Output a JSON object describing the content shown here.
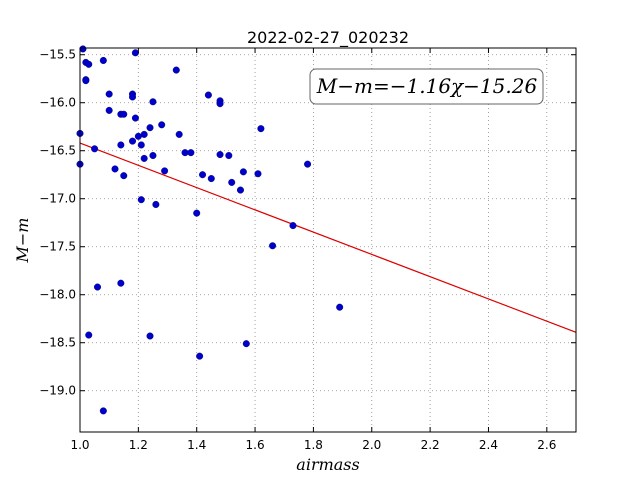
{
  "chart_data": {
    "type": "scatter",
    "title": "2022-02-27_020232",
    "xlabel": "airmass",
    "ylabel": "M−m",
    "xlim": [
      1.0,
      2.7
    ],
    "ylim": [
      -19.43,
      -15.43
    ],
    "grid": true,
    "xticks": [
      1.0,
      1.2,
      1.4,
      1.6,
      1.8,
      2.0,
      2.2,
      2.4,
      2.6
    ],
    "xtick_labels": [
      "1.0",
      "1.2",
      "1.4",
      "1.6",
      "1.8",
      "2.0",
      "2.2",
      "2.4",
      "2.6"
    ],
    "yticks": [
      -15.5,
      -16.0,
      -16.5,
      -17.0,
      -17.5,
      -18.0,
      -18.5,
      -19.0
    ],
    "ytick_labels": [
      "−15.5",
      "−16.0",
      "−16.5",
      "−17.0",
      "−17.5",
      "−18.0",
      "−18.5",
      "−19.0"
    ],
    "annotation": "M−m=−1.16χ−15.26",
    "fit": {
      "slope": -1.16,
      "intercept": -15.26
    },
    "colors": {
      "points": "#0000cc",
      "fit_line": "#dd0000",
      "grid": "#8c8c8c"
    },
    "points": [
      [
        1.0,
        -16.32
      ],
      [
        1.0,
        -16.64
      ],
      [
        1.01,
        -15.44
      ],
      [
        1.02,
        -15.58
      ],
      [
        1.02,
        -15.76
      ],
      [
        1.02,
        -15.77
      ],
      [
        1.03,
        -15.6
      ],
      [
        1.03,
        -18.42
      ],
      [
        1.05,
        -16.48
      ],
      [
        1.06,
        -17.92
      ],
      [
        1.08,
        -19.21
      ],
      [
        1.08,
        -15.56
      ],
      [
        1.1,
        -15.91
      ],
      [
        1.1,
        -16.08
      ],
      [
        1.12,
        -16.69
      ],
      [
        1.14,
        -16.12
      ],
      [
        1.14,
        -17.88
      ],
      [
        1.15,
        -16.12
      ],
      [
        1.14,
        -16.44
      ],
      [
        1.15,
        -16.76
      ],
      [
        1.18,
        -15.91
      ],
      [
        1.18,
        -15.94
      ],
      [
        1.18,
        -16.4
      ],
      [
        1.19,
        -15.48
      ],
      [
        1.19,
        -16.16
      ],
      [
        1.2,
        -16.35
      ],
      [
        1.21,
        -16.44
      ],
      [
        1.21,
        -17.01
      ],
      [
        1.22,
        -16.58
      ],
      [
        1.22,
        -16.33
      ],
      [
        1.24,
        -16.26
      ],
      [
        1.24,
        -18.43
      ],
      [
        1.25,
        -15.99
      ],
      [
        1.25,
        -16.55
      ],
      [
        1.26,
        -17.06
      ],
      [
        1.28,
        -16.23
      ],
      [
        1.29,
        -16.71
      ],
      [
        1.33,
        -15.66
      ],
      [
        1.34,
        -16.33
      ],
      [
        1.36,
        -16.52
      ],
      [
        1.38,
        -16.52
      ],
      [
        1.4,
        -17.15
      ],
      [
        1.41,
        -18.64
      ],
      [
        1.42,
        -16.75
      ],
      [
        1.44,
        -15.92
      ],
      [
        1.45,
        -16.79
      ],
      [
        1.48,
        -16.54
      ],
      [
        1.48,
        -15.98
      ],
      [
        1.48,
        -16.01
      ],
      [
        1.51,
        -16.55
      ],
      [
        1.52,
        -16.83
      ],
      [
        1.55,
        -16.91
      ],
      [
        1.56,
        -16.72
      ],
      [
        1.57,
        -18.51
      ],
      [
        1.61,
        -16.74
      ],
      [
        1.62,
        -16.27
      ],
      [
        1.66,
        -17.49
      ],
      [
        1.73,
        -17.28
      ],
      [
        1.78,
        -16.64
      ],
      [
        1.89,
        -18.13
      ]
    ]
  }
}
